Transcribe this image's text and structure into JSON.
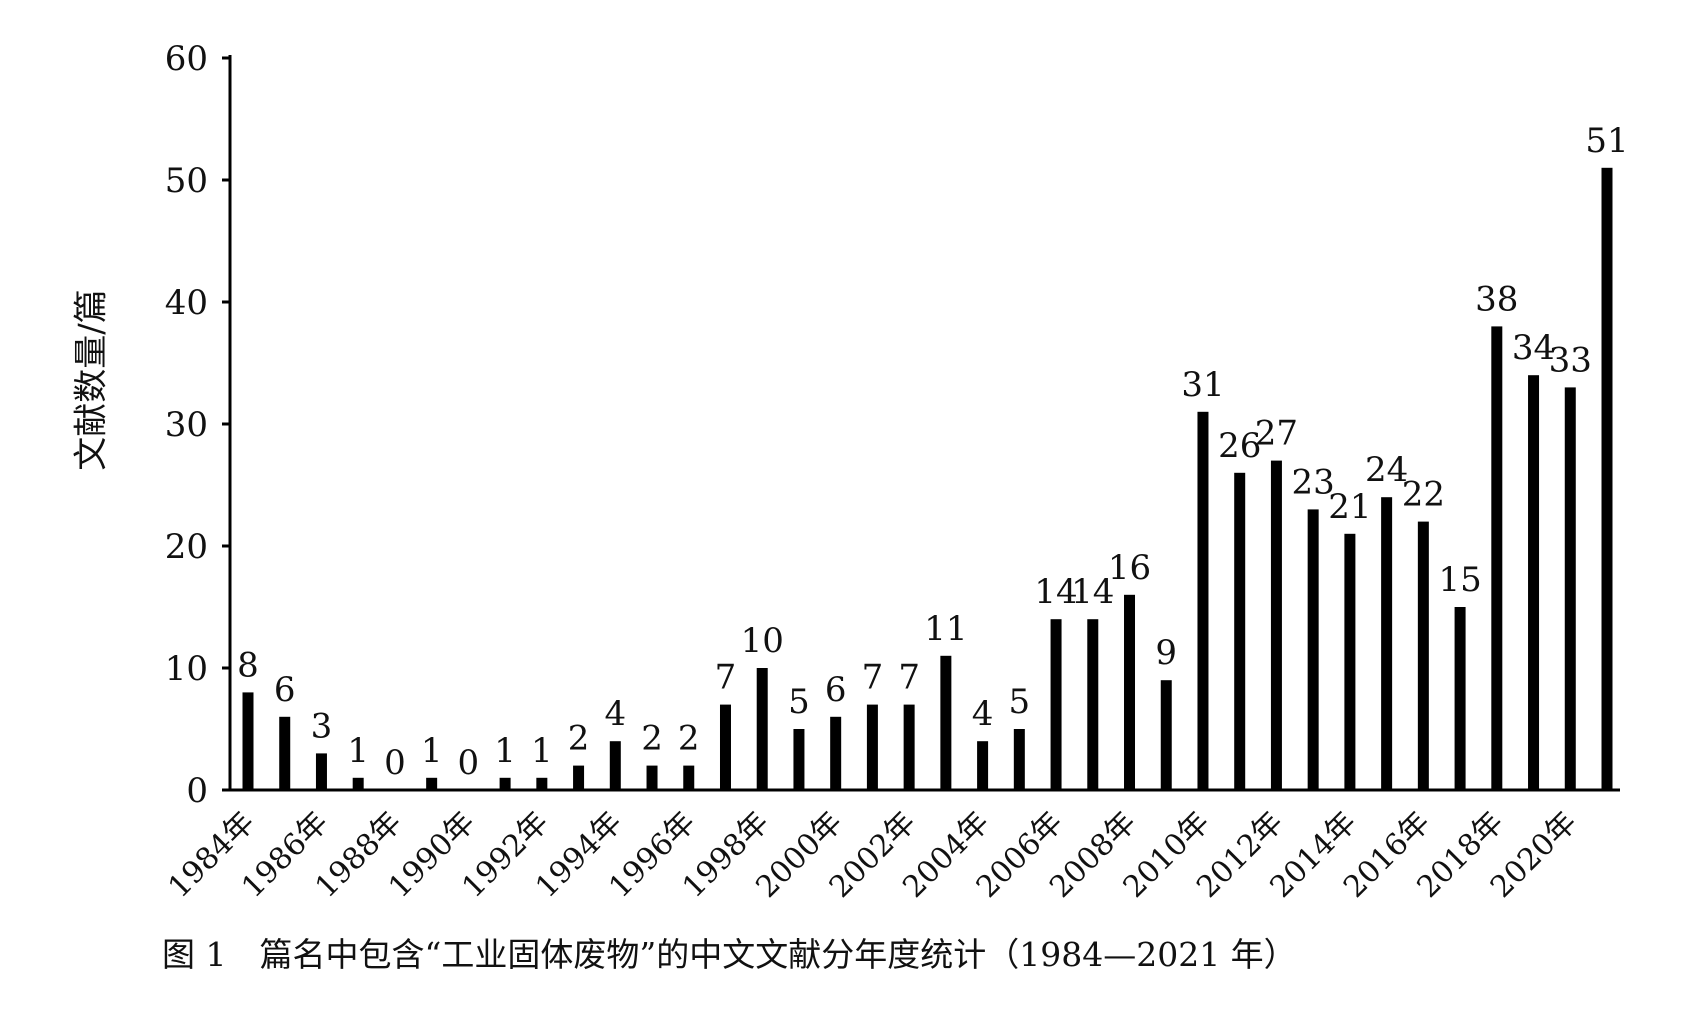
{
  "chart_data": {
    "type": "bar",
    "categories": [
      "1984年",
      "1985年",
      "1986年",
      "1987年",
      "1988年",
      "1989年",
      "1990年",
      "1991年",
      "1992年",
      "1993年",
      "1994年",
      "1995年",
      "1996年",
      "1997年",
      "1998年",
      "1999年",
      "2000年",
      "2001年",
      "2002年",
      "2003年",
      "2004年",
      "2005年",
      "2006年",
      "2007年",
      "2008年",
      "2009年",
      "2010年",
      "2011年",
      "2012年",
      "2013年",
      "2014年",
      "2015年",
      "2016年",
      "2017年",
      "2018年",
      "2019年",
      "2020年",
      "2021年"
    ],
    "x_tick_labels": [
      "1984年",
      "",
      "1986年",
      "",
      "1988年",
      "",
      "1990年",
      "",
      "1992年",
      "",
      "1994年",
      "",
      "1996年",
      "",
      "1998年",
      "",
      "2000年",
      "",
      "2002年",
      "",
      "2004年",
      "",
      "2006年",
      "",
      "2008年",
      "",
      "2010年",
      "",
      "2012年",
      "",
      "2014年",
      "",
      "2016年",
      "",
      "2018年",
      "",
      "2020年",
      ""
    ],
    "values": [
      8,
      6,
      3,
      1,
      0,
      1,
      0,
      1,
      1,
      2,
      4,
      2,
      2,
      7,
      10,
      5,
      6,
      7,
      7,
      11,
      4,
      5,
      14,
      14,
      16,
      9,
      31,
      26,
      27,
      23,
      21,
      24,
      22,
      15,
      38,
      34,
      33,
      51
    ],
    "ylabel": "文献数量/篇",
    "xlabel": "",
    "ylim": [
      0,
      60
    ],
    "yticks": [
      0,
      10,
      20,
      30,
      40,
      50,
      60
    ],
    "data_labels": true,
    "grid": false,
    "bar_color": "#000000"
  },
  "caption": "图 1　篇名中包含“工业固体废物”的中文文献分年度统计（1984—2021 年）"
}
